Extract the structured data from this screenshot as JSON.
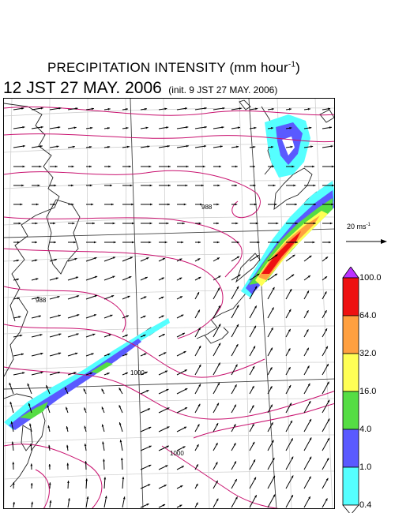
{
  "title": {
    "main": "PRECIPITATION INTENSITY (mm hour",
    "exponent": "-1",
    "close": ")"
  },
  "subtitle": {
    "valid_time": "12 JST 27 MAY. 2006",
    "init_time": "(init. 9 JST 27 MAY. 2006)"
  },
  "reference_vector": {
    "label": "20 ms",
    "exponent": "-1"
  },
  "colorbar": {
    "levels": [
      "0.4",
      "1.0",
      "4.0",
      "16.0",
      "32.0",
      "64.0",
      "100.0"
    ],
    "colors": [
      "#55ffff",
      "#5a5aff",
      "#55dd44",
      "#ffff55",
      "#ffa040",
      "#ee1111",
      "#bb33ff"
    ]
  },
  "isobar_labels": [
    "988",
    "988",
    "1000",
    "1000"
  ]
}
